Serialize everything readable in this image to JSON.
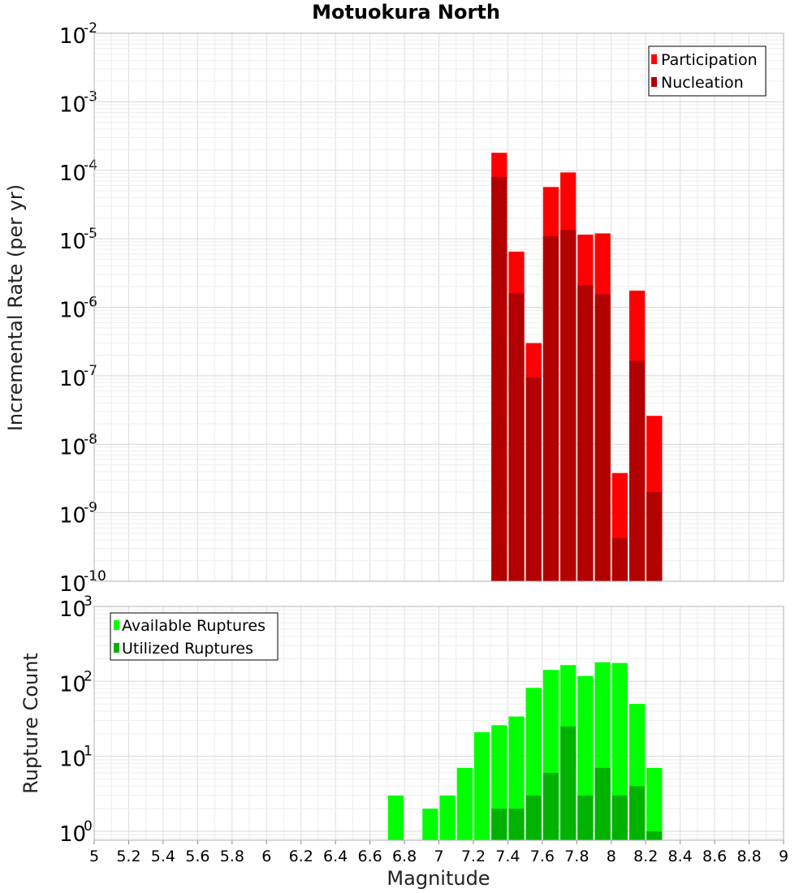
{
  "chart_data": [
    {
      "type": "bar",
      "title": "Motuokura North",
      "ylabel": "Incremental Rate (per yr)",
      "xlabel": "",
      "yscale": "log",
      "xlim": [
        5,
        9
      ],
      "ylim_exp": [
        -10,
        -2
      ],
      "yticks": [
        {
          "base": "10",
          "exp": "-10"
        },
        {
          "base": "10",
          "exp": "-9"
        },
        {
          "base": "10",
          "exp": "-8"
        },
        {
          "base": "10",
          "exp": "-7"
        },
        {
          "base": "10",
          "exp": "-6"
        },
        {
          "base": "10",
          "exp": "-5"
        },
        {
          "base": "10",
          "exp": "-4"
        },
        {
          "base": "10",
          "exp": "-3"
        },
        {
          "base": "10",
          "exp": "-2"
        }
      ],
      "grid": true,
      "legend_position": "top-right",
      "x": [
        7.35,
        7.45,
        7.55,
        7.65,
        7.75,
        7.85,
        7.95,
        8.05,
        8.15,
        8.25
      ],
      "series": [
        {
          "name": "Participation",
          "color": "#ff0000",
          "values": [
            0.00018,
            6.5e-06,
            3e-07,
            5.7e-05,
            9.3e-05,
            1.15e-05,
            1.2e-05,
            3.8e-09,
            1.75e-06,
            2.6e-08
          ]
        },
        {
          "name": "Nucleation",
          "color": "#b20000",
          "values": [
            8e-05,
            1.6e-06,
            9.5e-08,
            1.1e-05,
            1.35e-05,
            2.1e-06,
            1.55e-06,
            4.3e-10,
            1.65e-07,
            2e-09
          ]
        }
      ]
    },
    {
      "type": "bar",
      "title": "",
      "ylabel": "Rupture Count",
      "xlabel": "Magnitude",
      "yscale": "log",
      "xlim": [
        5,
        9
      ],
      "ylim_exp": [
        -0.12,
        3
      ],
      "yticks": [
        {
          "base": "10",
          "exp": "0"
        },
        {
          "base": "10",
          "exp": "1"
        },
        {
          "base": "10",
          "exp": "2"
        },
        {
          "base": "10",
          "exp": "3"
        }
      ],
      "xticks": [
        "5",
        "5.2",
        "5.4",
        "5.6",
        "5.8",
        "6",
        "6.2",
        "6.4",
        "6.6",
        "6.8",
        "7",
        "7.2",
        "7.4",
        "7.6",
        "7.8",
        "8",
        "8.2",
        "8.4",
        "8.6",
        "8.8",
        "9"
      ],
      "grid": true,
      "legend_position": "top-left",
      "series": [
        {
          "name": "Available Ruptures",
          "color": "#00ff00",
          "x": [
            6.75,
            6.95,
            7.05,
            7.15,
            7.25,
            7.35,
            7.45,
            7.55,
            7.65,
            7.75,
            7.85,
            7.95,
            8.05,
            8.15,
            8.25
          ],
          "values": [
            3,
            2,
            3,
            7,
            21,
            26,
            34,
            82,
            142,
            165,
            118,
            180,
            176,
            50,
            7
          ]
        },
        {
          "name": "Utilized Ruptures",
          "color": "#00b200",
          "x": [
            7.35,
            7.45,
            7.55,
            7.65,
            7.75,
            7.85,
            7.95,
            8.05,
            8.15,
            8.25
          ],
          "values": [
            2,
            2,
            3,
            6,
            25,
            3,
            7,
            3,
            4,
            1
          ]
        }
      ]
    }
  ]
}
